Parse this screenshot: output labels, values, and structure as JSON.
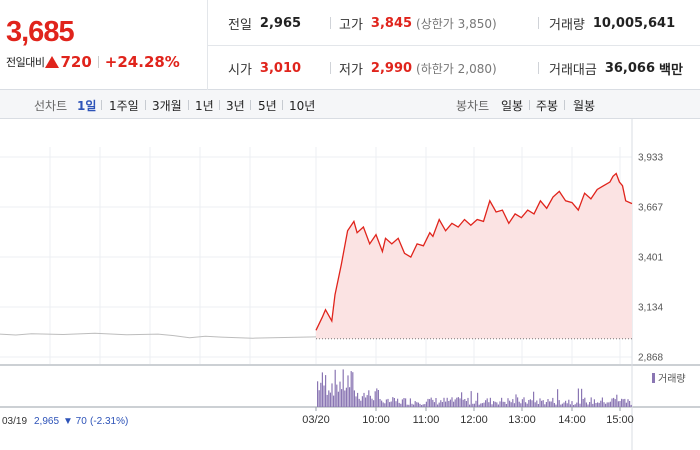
{
  "price": {
    "current": "3,685",
    "change_label": "전일대비",
    "change_amount": "720",
    "change_rate": "+24.28%"
  },
  "stats": {
    "prev_close": {
      "label": "전일",
      "value": "2,965"
    },
    "high": {
      "label": "고가",
      "value": "3,845",
      "note": "(상한가 3,850)"
    },
    "volume": {
      "label": "거래량",
      "value": "10,005,641"
    },
    "open": {
      "label": "시가",
      "value": "3,010"
    },
    "low": {
      "label": "저가",
      "value": "2,990",
      "note": "(하한가 2,080)"
    },
    "amount": {
      "label": "거래대금",
      "value": "36,066",
      "unit": "백만"
    }
  },
  "toolbar": {
    "line_label": "선차트",
    "line_periods": [
      "1일",
      "1주일",
      "3개월",
      "1년",
      "3년",
      "5년",
      "10년"
    ],
    "active_period": "1일",
    "candle_label": "봉차트",
    "candle_periods": [
      "일봉",
      "주봉",
      "월봉"
    ]
  },
  "colors": {
    "up": "#e0241c",
    "active_tab": "#2d53b8",
    "volume_bar": "#8a76b3",
    "prev_day_line": "#bdbdbd"
  },
  "chart_data": {
    "type": "line",
    "y_ticks": [
      "3,933",
      "3,667",
      "3,401",
      "3,134",
      "2,868"
    ],
    "ylim": [
      2868,
      3933
    ],
    "x_ticks": [
      "03/20",
      "10:00",
      "11:00",
      "12:00",
      "13:00",
      "14:00",
      "15:00"
    ],
    "prev_close": 2965,
    "prev_day": {
      "date": "03/19",
      "series": [
        [
          0,
          2990
        ],
        [
          0.05,
          2985
        ],
        [
          0.1,
          2992
        ],
        [
          0.2,
          2988
        ],
        [
          0.3,
          2994
        ],
        [
          0.4,
          2986
        ],
        [
          0.5,
          2990
        ],
        [
          0.55,
          2982
        ],
        [
          0.6,
          2970
        ],
        [
          0.65,
          2978
        ],
        [
          0.7,
          2974
        ],
        [
          0.8,
          2968
        ],
        [
          0.9,
          2972
        ],
        [
          1.0,
          2975
        ]
      ]
    },
    "intraday": {
      "series": [
        [
          0.0,
          3010
        ],
        [
          0.02,
          3080
        ],
        [
          0.03,
          3120
        ],
        [
          0.05,
          3060
        ],
        [
          0.06,
          3200
        ],
        [
          0.08,
          3360
        ],
        [
          0.1,
          3540
        ],
        [
          0.12,
          3590
        ],
        [
          0.13,
          3530
        ],
        [
          0.15,
          3560
        ],
        [
          0.17,
          3470
        ],
        [
          0.19,
          3520
        ],
        [
          0.21,
          3430
        ],
        [
          0.22,
          3500
        ],
        [
          0.24,
          3470
        ],
        [
          0.26,
          3500
        ],
        [
          0.28,
          3420
        ],
        [
          0.3,
          3400
        ],
        [
          0.32,
          3470
        ],
        [
          0.34,
          3460
        ],
        [
          0.36,
          3530
        ],
        [
          0.37,
          3510
        ],
        [
          0.39,
          3600
        ],
        [
          0.41,
          3540
        ],
        [
          0.43,
          3580
        ],
        [
          0.45,
          3560
        ],
        [
          0.47,
          3600
        ],
        [
          0.49,
          3570
        ],
        [
          0.51,
          3600
        ],
        [
          0.53,
          3590
        ],
        [
          0.55,
          3700
        ],
        [
          0.57,
          3640
        ],
        [
          0.59,
          3650
        ],
        [
          0.61,
          3580
        ],
        [
          0.63,
          3630
        ],
        [
          0.65,
          3610
        ],
        [
          0.67,
          3650
        ],
        [
          0.69,
          3630
        ],
        [
          0.71,
          3700
        ],
        [
          0.73,
          3660
        ],
        [
          0.75,
          3720
        ],
        [
          0.77,
          3750
        ],
        [
          0.79,
          3700
        ],
        [
          0.81,
          3690
        ],
        [
          0.83,
          3650
        ],
        [
          0.85,
          3740
        ],
        [
          0.87,
          3710
        ],
        [
          0.89,
          3760
        ],
        [
          0.91,
          3780
        ],
        [
          0.93,
          3800
        ],
        [
          0.94,
          3830
        ],
        [
          0.95,
          3845
        ],
        [
          0.96,
          3800
        ],
        [
          0.97,
          3780
        ],
        [
          0.98,
          3700
        ],
        [
          1.0,
          3685
        ]
      ]
    },
    "volume_legend": "거래량",
    "footer": {
      "date": "03/19",
      "close": "2,965",
      "change": "▼ 70",
      "rate": "(-2.31%)"
    }
  }
}
